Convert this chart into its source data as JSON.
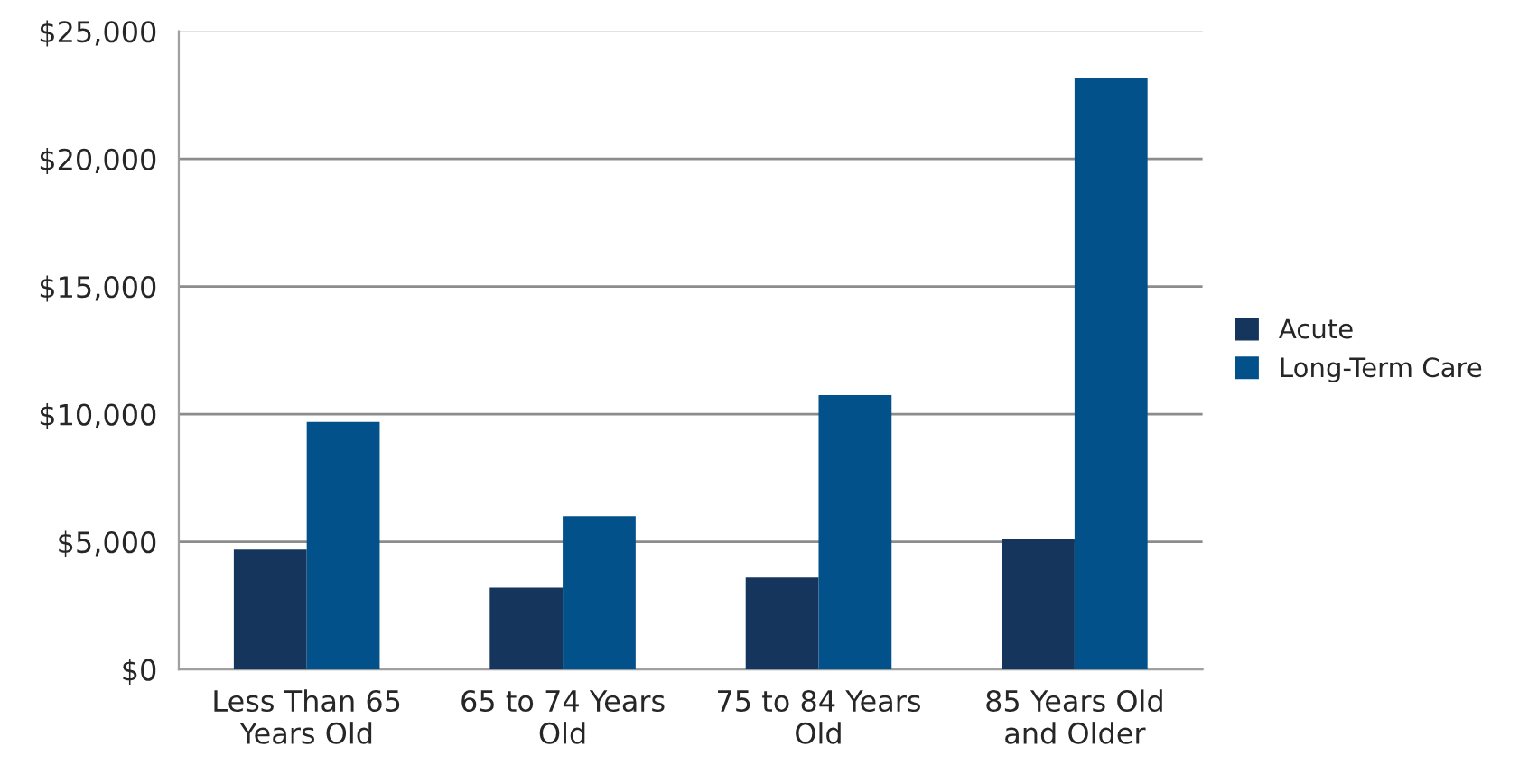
{
  "chart_data": {
    "type": "bar",
    "categories": [
      "Less Than 65\nYears Old",
      "65 to 74 Years\nOld",
      "75 to 84 Years\nOld",
      "85 Years Old\nand Older"
    ],
    "series": [
      {
        "name": "Acute",
        "color": "#15355c",
        "values": [
          4700,
          3200,
          3600,
          5100
        ]
      },
      {
        "name": "Long-Term Care",
        "color": "#02518a",
        "values": [
          9700,
          6000,
          10750,
          23150
        ]
      }
    ],
    "ylim": [
      0,
      25000
    ],
    "yticks": [
      {
        "value": 0,
        "label": "$0"
      },
      {
        "value": 5000,
        "label": "$5,000"
      },
      {
        "value": 10000,
        "label": "$10,000"
      },
      {
        "value": 15000,
        "label": "$15,000"
      },
      {
        "value": 20000,
        "label": "$20,000"
      },
      {
        "value": 25000,
        "label": "$25,000"
      }
    ],
    "grid": "y",
    "legend": "right"
  }
}
